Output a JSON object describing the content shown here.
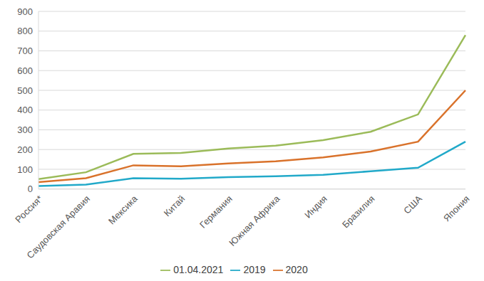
{
  "chart_data": {
    "type": "line",
    "categories": [
      "Россия*",
      "Саудовская Аравия",
      "Мексика",
      "Китай",
      "Германия",
      "Южная Африка",
      "Индия",
      "Бразилия",
      "США",
      "Япония"
    ],
    "series": [
      {
        "name": "2019",
        "color": "#21a9c9",
        "values": [
          15,
          22,
          55,
          52,
          60,
          65,
          72,
          90,
          108,
          240
        ]
      },
      {
        "name": "2020",
        "color": "#d9722b",
        "values": [
          35,
          55,
          120,
          115,
          130,
          140,
          160,
          190,
          240,
          500
        ]
      },
      {
        "name": "01.04.2021",
        "color": "#9bbb59",
        "values": [
          50,
          85,
          178,
          183,
          205,
          220,
          248,
          290,
          378,
          780
        ]
      }
    ],
    "ylim": [
      0,
      900
    ],
    "yticks": [
      0,
      100,
      200,
      300,
      400,
      500,
      600,
      700,
      800,
      900
    ],
    "grid": true,
    "legend": "bottom"
  }
}
